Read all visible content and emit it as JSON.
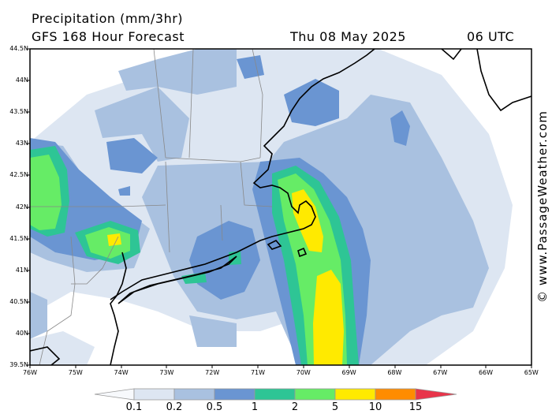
{
  "header": {
    "title": "Precipitation (mm/3hr)",
    "model_line": "GFS 168 Hour Forecast",
    "valid_date": "Thu 08 May 2025",
    "valid_time": "06 UTC"
  },
  "credit": "© www.PassageWeather.com",
  "axes": {
    "lat_labels": [
      "44.5N",
      "44N",
      "43.5N",
      "43N",
      "42.5N",
      "42N",
      "41.5N",
      "41N",
      "40.5N",
      "40N",
      "39.5N"
    ],
    "lon_labels": [
      "76W",
      "75W",
      "74W",
      "73W",
      "72W",
      "71W",
      "70W",
      "69W",
      "68W",
      "67W",
      "66W",
      "65W"
    ]
  },
  "legend": {
    "ticks": [
      "0.1",
      "0.2",
      "0.5",
      "1",
      "2",
      "5",
      "10",
      "15"
    ],
    "colors": [
      "#dde6f2",
      "#a9c1e0",
      "#6a95d2",
      "#2ec595",
      "#66ec66",
      "#ffea00",
      "#ff8c00",
      "#e8344a"
    ]
  },
  "colors": {
    "light": "#dde6f2",
    "med": "#a9c1e0",
    "blue": "#6a95d2",
    "teal": "#2ec595",
    "green": "#66ec66",
    "yellow": "#ffea00",
    "orange": "#ff8c00"
  }
}
